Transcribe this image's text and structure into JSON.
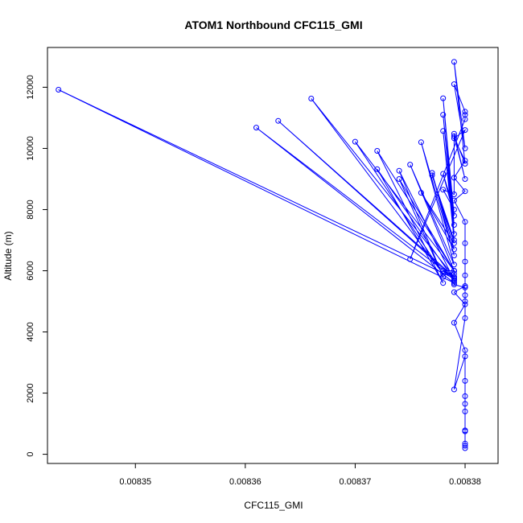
{
  "chart_data": {
    "type": "scatter",
    "title": "ATOM1 Northbound CFC115_GMI",
    "xlabel": "CFC115_GMI",
    "ylabel": "Altitude (m)",
    "xlim": [
      0.008342,
      0.008383
    ],
    "ylim": [
      -300,
      13300
    ],
    "x_ticks": [
      0.00835,
      0.00836,
      0.00837,
      0.00838
    ],
    "x_tick_labels": [
      "0.00835",
      "0.00836",
      "0.00837",
      "0.00838"
    ],
    "y_ticks": [
      0,
      2000,
      4000,
      6000,
      8000,
      10000,
      12000
    ],
    "y_tick_labels": [
      "0",
      "2000",
      "4000",
      "6000",
      "8000",
      "10000",
      "12000"
    ],
    "color": "#0000ff",
    "series": [
      {
        "name": "CFC115_GMI",
        "x": [
          0.00838,
          0.00838,
          0.00838,
          0.00838,
          0.00838,
          0.00838,
          0.00838,
          0.00838,
          0.008379,
          0.00838,
          0.00838,
          0.00838,
          0.00838,
          0.008379,
          0.008379,
          0.008379,
          0.008379,
          0.008379,
          0.008378,
          0.008379,
          0.008379,
          0.008343,
          0.008379,
          0.008361,
          0.008379,
          0.008363,
          0.008379,
          0.008366,
          0.008378,
          0.00837,
          0.008379,
          0.008372,
          0.008378,
          0.008372,
          0.008379,
          0.008374,
          0.008378,
          0.008374,
          0.008379,
          0.008375,
          0.008379,
          0.008376,
          0.008379,
          0.008377,
          0.008379,
          0.008376,
          0.008379,
          0.008377,
          0.008379,
          0.008378,
          0.008379,
          0.008378,
          0.008379,
          0.008378,
          0.008379,
          0.008378,
          0.008379,
          0.008378,
          0.008379,
          0.008379,
          0.00838,
          0.008379,
          0.00838,
          0.008379,
          0.00838,
          0.008379,
          0.00838,
          0.00838,
          0.00838,
          0.008375,
          0.00838,
          0.008379,
          0.00838,
          0.008379,
          0.00838,
          0.008379,
          0.00838,
          0.00838,
          0.00838,
          0.00838,
          0.00838,
          0.008379,
          0.00838,
          0.008379,
          0.00838,
          0.00838,
          0.00838
        ],
        "y": [
          200,
          280,
          350,
          750,
          1650,
          1900,
          2400,
          3200,
          2120,
          4450,
          5000,
          5200,
          5450,
          5550,
          5650,
          5800,
          5900,
          6000,
          6000,
          5700,
          5750,
          11920,
          5600,
          10680,
          5750,
          10900,
          5800,
          11630,
          5900,
          10220,
          6000,
          9920,
          5600,
          9320,
          5700,
          9270,
          5800,
          9000,
          6000,
          9470,
          6200,
          10200,
          6500,
          9200,
          6700,
          8550,
          6900,
          9120,
          7000,
          10570,
          7200,
          11100,
          7500,
          11640,
          7800,
          9170,
          8000,
          8650,
          8500,
          10480,
          9000,
          10400,
          9500,
          12830,
          10000,
          12100,
          11200,
          11100,
          10950,
          6380,
          10600,
          10330,
          9600,
          9040,
          8600,
          8300,
          7600,
          6900,
          6300,
          5850,
          5500,
          5300,
          4900,
          4300,
          3400,
          1400,
          780
        ]
      }
    ]
  }
}
